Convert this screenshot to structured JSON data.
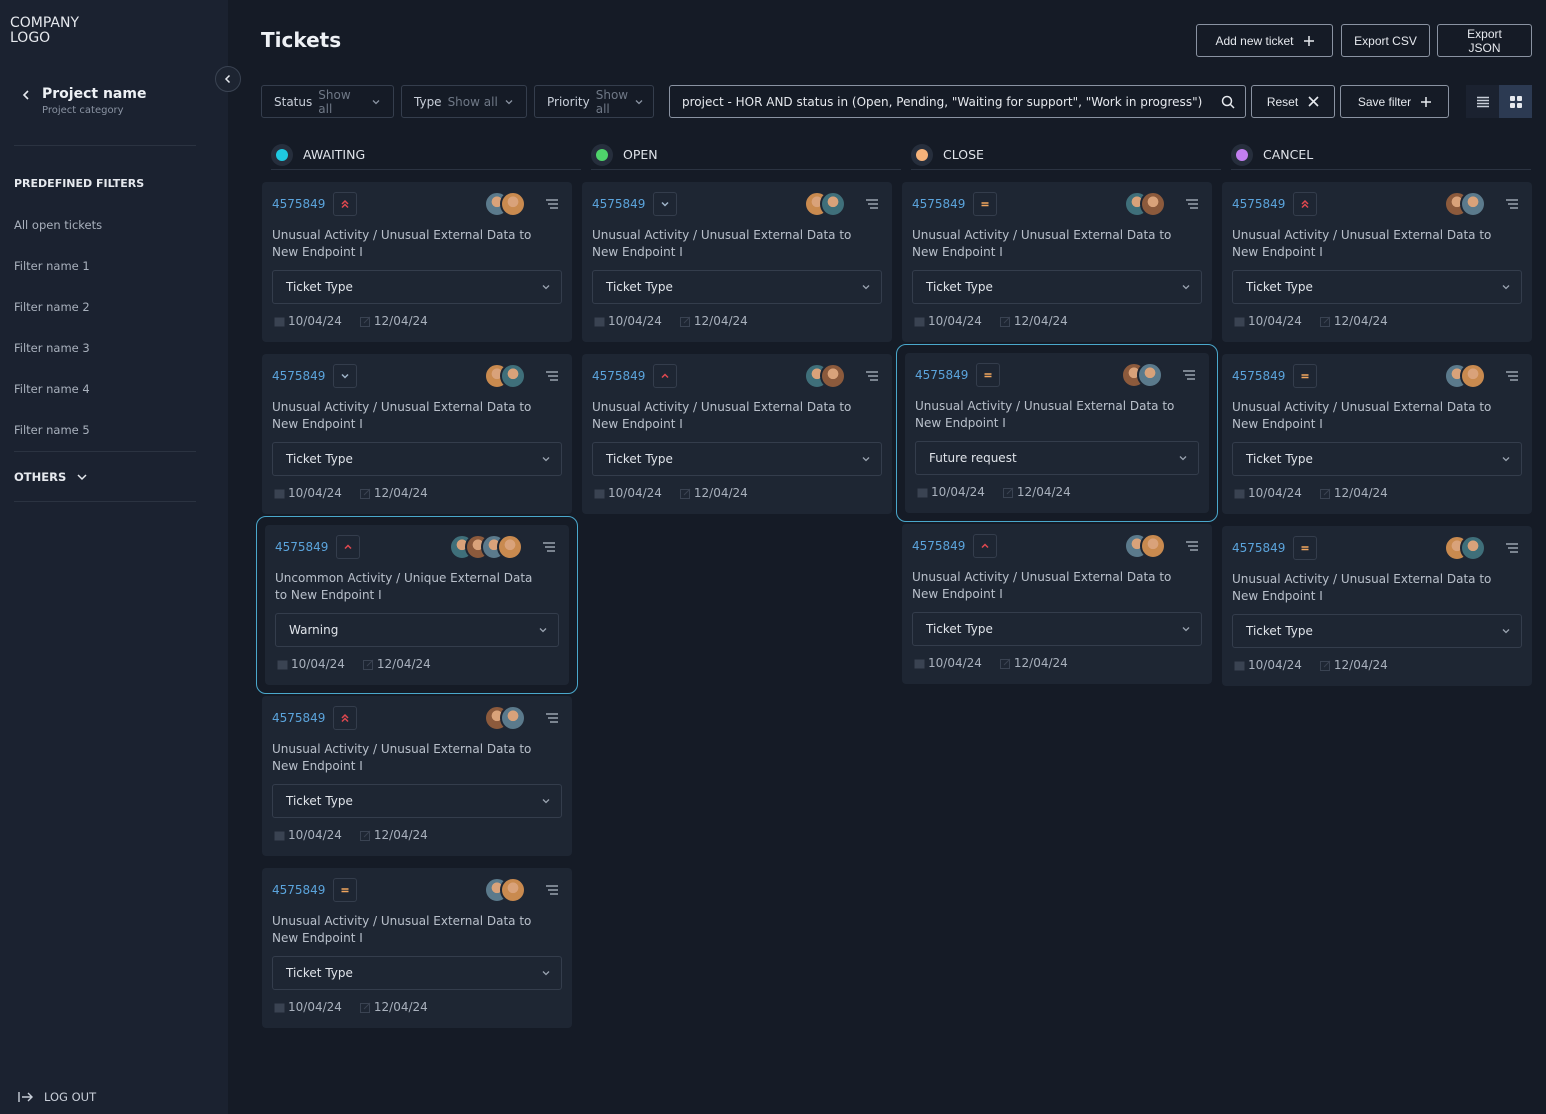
{
  "sidebar": {
    "logo": [
      "COMPANY",
      "LOGO"
    ],
    "project_name": "Project name",
    "project_category": "Project category",
    "filters_heading": "PREDEFINED FILTERS",
    "filters": [
      "All open tickets",
      "Filter name 1",
      "Filter name 2",
      "Filter name 3",
      "Filter name 4",
      "Filter name 5"
    ],
    "others": "OTHERS",
    "logout": "LOG OUT"
  },
  "header": {
    "title": "Tickets",
    "buttons": [
      "Add new ticket",
      "Export CSV",
      "Export JSON"
    ]
  },
  "toolbar": {
    "filters": [
      {
        "label": "Status",
        "value": "Show all"
      },
      {
        "label": "Type",
        "value": "Show all"
      },
      {
        "label": "Priority",
        "value": "Show all"
      }
    ],
    "query": "project - HOR AND status in (Open, Pending, \"Waiting for support\", \"Work in progress\")",
    "reset": "Reset",
    "save": "Save filter"
  },
  "columns": [
    {
      "name": "AWAITING",
      "color": "#1fc8e0",
      "cards": [
        {
          "id": "4575849",
          "priority": "highest",
          "avatars": 2,
          "title": "Unusual Activity / Unusual External Data to New Endpoint I",
          "select": "Ticket Type",
          "start": "10/04/24",
          "end": "12/04/24"
        },
        {
          "id": "4575849",
          "priority": "low",
          "avatars": 2,
          "title": "Unusual Activity / Unusual External Data to New Endpoint I",
          "select": "Ticket Type",
          "start": "10/04/24",
          "end": "12/04/24"
        },
        {
          "id": "4575849",
          "priority": "high",
          "avatars": 4,
          "highlighted": true,
          "title": "Uncommon Activity / Unique External Data to New Endpoint I",
          "select": "Warning",
          "start": "10/04/24",
          "end": "12/04/24"
        },
        {
          "id": "4575849",
          "priority": "highest",
          "avatars": 2,
          "title": "Unusual Activity / Unusual External Data to New Endpoint I",
          "select": "Ticket Type",
          "start": "10/04/24",
          "end": "12/04/24"
        },
        {
          "id": "4575849",
          "priority": "medium",
          "avatars": 2,
          "title": "Unusual Activity / Unusual External Data to New Endpoint I",
          "select": "Ticket Type",
          "start": "10/04/24",
          "end": "12/04/24"
        }
      ]
    },
    {
      "name": "OPEN",
      "color": "#4fd36b",
      "cards": [
        {
          "id": "4575849",
          "priority": "low",
          "avatars": 2,
          "title": "Unusual Activity / Unusual External Data to New Endpoint I",
          "select": "Ticket Type",
          "start": "10/04/24",
          "end": "12/04/24"
        },
        {
          "id": "4575849",
          "priority": "high",
          "avatars": 2,
          "title": "Unusual Activity / Unusual External Data to New Endpoint I",
          "select": "Ticket Type",
          "start": "10/04/24",
          "end": "12/04/24"
        }
      ]
    },
    {
      "name": "CLOSE",
      "color": "#f5b27a",
      "cards": [
        {
          "id": "4575849",
          "priority": "medium",
          "avatars": 2,
          "title": "Unusual Activity / Unusual External Data to New Endpoint I",
          "select": "Ticket Type",
          "start": "10/04/24",
          "end": "12/04/24"
        },
        {
          "id": "4575849",
          "priority": "medium",
          "avatars": 2,
          "highlighted": true,
          "title": "Unusual Activity / Unusual External Data to New Endpoint I",
          "select": "Future request",
          "start": "10/04/24",
          "end": "12/04/24"
        },
        {
          "id": "4575849",
          "priority": "high",
          "avatars": 2,
          "title": "Unusual Activity / Unusual External Data to New Endpoint I",
          "select": "Ticket Type",
          "start": "10/04/24",
          "end": "12/04/24"
        }
      ]
    },
    {
      "name": "CANCEL",
      "color": "#c27ff0",
      "cards": [
        {
          "id": "4575849",
          "priority": "highest",
          "avatars": 2,
          "title": "Unusual Activity / Unusual External Data to New Endpoint I",
          "select": "Ticket Type",
          "start": "10/04/24",
          "end": "12/04/24"
        },
        {
          "id": "4575849",
          "priority": "medium",
          "avatars": 2,
          "title": "Unusual Activity / Unusual External Data to New Endpoint I",
          "select": "Ticket Type",
          "start": "10/04/24",
          "end": "12/04/24"
        },
        {
          "id": "4575849",
          "priority": "medium",
          "avatars": 2,
          "title": "Unusual Activity / Unusual External Data to New Endpoint I",
          "select": "Ticket Type",
          "start": "10/04/24",
          "end": "12/04/24"
        }
      ]
    }
  ]
}
